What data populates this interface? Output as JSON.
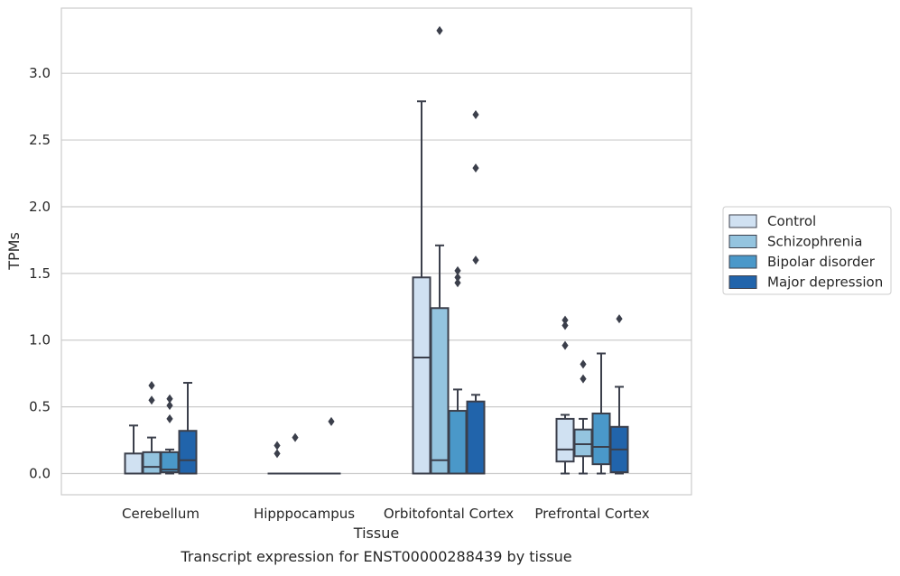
{
  "chart_data": {
    "type": "boxplot",
    "title": "",
    "xlabel": "Tissue",
    "ylabel": "TPMs",
    "caption": "Transcript expression for ENST00000288439 by tissue",
    "categories": [
      "Cerebellum",
      "Hipppocampus",
      "Orbitofontal Cortex",
      "Prefrontal Cortex"
    ],
    "ylim": [
      -0.16,
      3.49
    ],
    "yticks": [
      0.0,
      0.5,
      1.0,
      1.5,
      2.0,
      2.5,
      3.0
    ],
    "ytick_labels": [
      "0.0",
      "0.5",
      "1.0",
      "1.5",
      "2.0",
      "2.5",
      "3.0"
    ],
    "grid": "horizontal",
    "legend_position": "right",
    "series": [
      {
        "name": "Control",
        "color": "#d0e1f2",
        "boxes": [
          {
            "category": "Cerebellum",
            "whisker_low": 0.0,
            "q1": 0.0,
            "median": 0.0,
            "q3": 0.15,
            "whisker_high": 0.36,
            "outliers": []
          },
          {
            "category": "Hipppocampus",
            "whisker_low": 0.0,
            "q1": 0.0,
            "median": 0.0,
            "q3": 0.0,
            "whisker_high": 0.0,
            "outliers": [
              0.15,
              0.21
            ]
          },
          {
            "category": "Orbitofontal Cortex",
            "whisker_low": 0.0,
            "q1": 0.0,
            "median": 0.87,
            "q3": 1.47,
            "whisker_high": 2.79,
            "outliers": []
          },
          {
            "category": "Prefrontal Cortex",
            "whisker_low": 0.0,
            "q1": 0.09,
            "median": 0.18,
            "q3": 0.41,
            "whisker_high": 0.44,
            "outliers": [
              0.96,
              1.11,
              1.15
            ]
          }
        ]
      },
      {
        "name": "Schizophrenia",
        "color": "#94c4df",
        "boxes": [
          {
            "category": "Cerebellum",
            "whisker_low": 0.0,
            "q1": 0.0,
            "median": 0.05,
            "q3": 0.16,
            "whisker_high": 0.27,
            "outliers": [
              0.55,
              0.66
            ]
          },
          {
            "category": "Hipppocampus",
            "whisker_low": 0.0,
            "q1": 0.0,
            "median": 0.0,
            "q3": 0.0,
            "whisker_high": 0.0,
            "outliers": [
              0.27
            ]
          },
          {
            "category": "Orbitofontal Cortex",
            "whisker_low": 0.0,
            "q1": 0.0,
            "median": 0.1,
            "q3": 1.24,
            "whisker_high": 1.71,
            "outliers": [
              3.32
            ]
          },
          {
            "category": "Prefrontal Cortex",
            "whisker_low": 0.0,
            "q1": 0.13,
            "median": 0.22,
            "q3": 0.33,
            "whisker_high": 0.41,
            "outliers": [
              0.71,
              0.82
            ]
          }
        ]
      },
      {
        "name": "Bipolar disorder",
        "color": "#4a98c9",
        "boxes": [
          {
            "category": "Cerebellum",
            "whisker_low": 0.0,
            "q1": 0.01,
            "median": 0.03,
            "q3": 0.16,
            "whisker_high": 0.18,
            "outliers": [
              0.41,
              0.51,
              0.56
            ]
          },
          {
            "category": "Hipppocampus",
            "whisker_low": 0.0,
            "q1": 0.0,
            "median": 0.0,
            "q3": 0.0,
            "whisker_high": 0.0,
            "outliers": []
          },
          {
            "category": "Orbitofontal Cortex",
            "whisker_low": 0.0,
            "q1": 0.0,
            "median": 0.0,
            "q3": 0.47,
            "whisker_high": 0.63,
            "outliers": [
              1.43,
              1.47,
              1.52
            ]
          },
          {
            "category": "Prefrontal Cortex",
            "whisker_low": 0.0,
            "q1": 0.07,
            "median": 0.2,
            "q3": 0.45,
            "whisker_high": 0.9,
            "outliers": []
          }
        ]
      },
      {
        "name": "Major depression",
        "color": "#2164ab",
        "boxes": [
          {
            "category": "Cerebellum",
            "whisker_low": 0.0,
            "q1": 0.0,
            "median": 0.1,
            "q3": 0.32,
            "whisker_high": 0.68,
            "outliers": []
          },
          {
            "category": "Hipppocampus",
            "whisker_low": 0.0,
            "q1": 0.0,
            "median": 0.0,
            "q3": 0.0,
            "whisker_high": 0.0,
            "outliers": [
              0.39
            ]
          },
          {
            "category": "Orbitofontal Cortex",
            "whisker_low": 0.0,
            "q1": 0.0,
            "median": 0.0,
            "q3": 0.54,
            "whisker_high": 0.59,
            "outliers": [
              1.6,
              2.29,
              2.69
            ]
          },
          {
            "category": "Prefrontal Cortex",
            "whisker_low": 0.0,
            "q1": 0.01,
            "median": 0.18,
            "q3": 0.35,
            "whisker_high": 0.65,
            "outliers": [
              1.16
            ]
          }
        ]
      }
    ]
  }
}
